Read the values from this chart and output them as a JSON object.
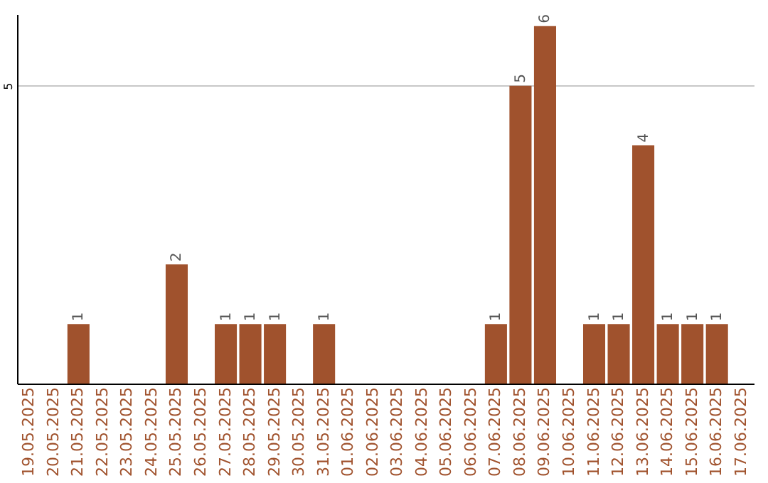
{
  "chart_data": {
    "type": "bar",
    "categories": [
      "19.05.2025",
      "20.05.2025",
      "21.05.2025",
      "22.05.2025",
      "23.05.2025",
      "24.05.2025",
      "25.05.2025",
      "26.05.2025",
      "27.05.2025",
      "28.05.2025",
      "29.05.2025",
      "30.05.2025",
      "31.05.2025",
      "01.06.2025",
      "02.06.2025",
      "03.06.2025",
      "04.06.2025",
      "05.06.2025",
      "06.06.2025",
      "07.06.2025",
      "08.06.2025",
      "09.06.2025",
      "10.06.2025",
      "11.06.2025",
      "12.06.2025",
      "13.06.2025",
      "14.06.2025",
      "15.06.2025",
      "16.06.2025",
      "17.06.2025"
    ],
    "values": [
      0,
      0,
      1,
      0,
      0,
      0,
      2,
      0,
      1,
      1,
      1,
      0,
      1,
      0,
      0,
      0,
      0,
      0,
      0,
      1,
      5,
      6,
      0,
      1,
      1,
      4,
      1,
      1,
      1,
      0
    ],
    "value_labels": [
      null,
      null,
      "1",
      null,
      null,
      null,
      "2",
      null,
      "1",
      "1",
      "1",
      null,
      "1",
      null,
      null,
      null,
      null,
      null,
      null,
      "1",
      "5",
      "6",
      null,
      "1",
      "1",
      "4",
      "1",
      "1",
      "1",
      null
    ],
    "color": "#a0522d",
    "ylim": [
      0,
      6.2
    ],
    "yticks": [
      5
    ],
    "grid": "y"
  }
}
